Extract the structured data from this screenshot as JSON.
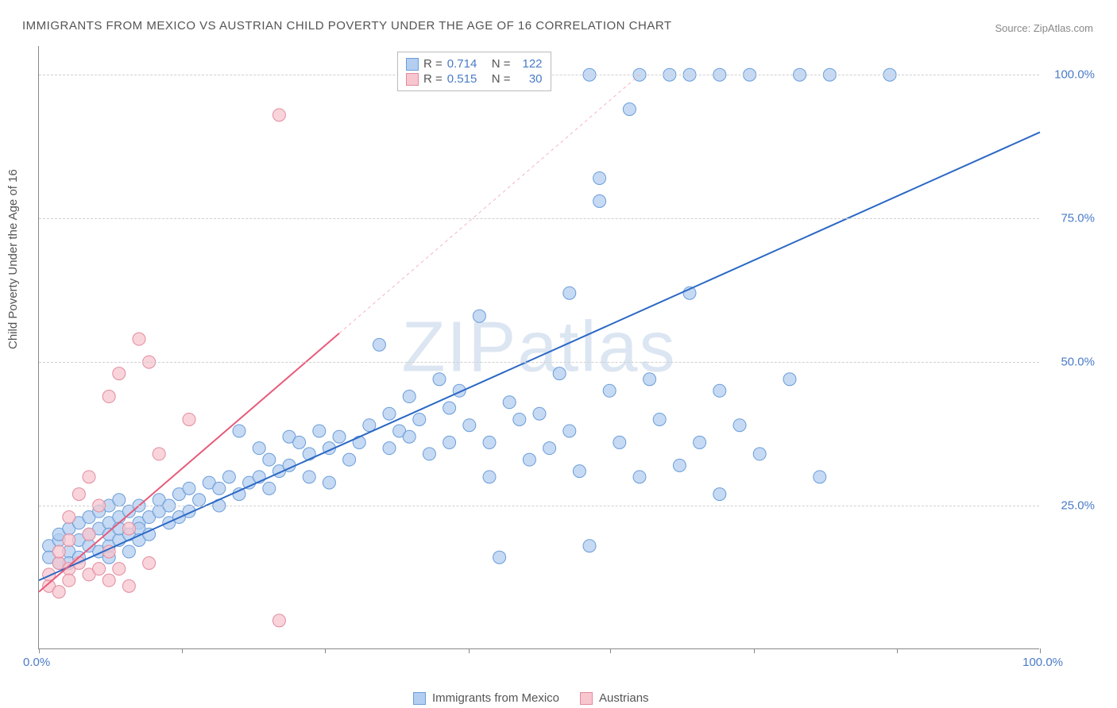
{
  "title": "IMMIGRANTS FROM MEXICO VS AUSTRIAN CHILD POVERTY UNDER THE AGE OF 16 CORRELATION CHART",
  "source": "Source: ZipAtlas.com",
  "ylabel": "Child Poverty Under the Age of 16",
  "watermark_bold": "ZIP",
  "watermark_thin": "atlas",
  "chart": {
    "type": "scatter",
    "xlim": [
      0,
      100
    ],
    "ylim": [
      0,
      105
    ],
    "ytick_labels": [
      "25.0%",
      "50.0%",
      "75.0%",
      "100.0%"
    ],
    "ytick_values": [
      25,
      50,
      75,
      100
    ],
    "xtick_left": "0.0%",
    "xtick_right": "100.0%",
    "xtick_marks": [
      0,
      14.3,
      28.6,
      42.9,
      57.1,
      71.4,
      85.7,
      100
    ],
    "grid_color": "#d0d0d0",
    "background_color": "#ffffff",
    "series": [
      {
        "name": "Immigrants from Mexico",
        "color_fill": "#b3cef0",
        "color_stroke": "#6a9dd8",
        "marker_radius": 8,
        "R": "0.714",
        "N": "122",
        "trend": {
          "x1": 0,
          "y1": 12,
          "x2": 100,
          "y2": 90,
          "color": "#2b68c4",
          "width": 2
        },
        "points": [
          [
            1,
            18
          ],
          [
            1,
            16
          ],
          [
            2,
            19
          ],
          [
            2,
            15
          ],
          [
            2,
            20
          ],
          [
            3,
            17
          ],
          [
            3,
            21
          ],
          [
            3,
            15
          ],
          [
            4,
            19
          ],
          [
            4,
            22
          ],
          [
            4,
            16
          ],
          [
            5,
            20
          ],
          [
            5,
            18
          ],
          [
            5,
            23
          ],
          [
            6,
            21
          ],
          [
            6,
            17
          ],
          [
            6,
            24
          ],
          [
            7,
            16
          ],
          [
            7,
            22
          ],
          [
            7,
            25
          ],
          [
            7,
            18
          ],
          [
            7,
            20
          ],
          [
            8,
            19
          ],
          [
            8,
            23
          ],
          [
            8,
            26
          ],
          [
            8,
            21
          ],
          [
            9,
            20
          ],
          [
            9,
            24
          ],
          [
            9,
            17
          ],
          [
            10,
            22
          ],
          [
            10,
            25
          ],
          [
            10,
            21
          ],
          [
            10,
            19
          ],
          [
            11,
            23
          ],
          [
            11,
            20
          ],
          [
            12,
            24
          ],
          [
            12,
            26
          ],
          [
            13,
            22
          ],
          [
            13,
            25
          ],
          [
            14,
            27
          ],
          [
            14,
            23
          ],
          [
            15,
            28
          ],
          [
            15,
            24
          ],
          [
            16,
            26
          ],
          [
            17,
            29
          ],
          [
            18,
            28
          ],
          [
            18,
            25
          ],
          [
            19,
            30
          ],
          [
            20,
            27
          ],
          [
            20,
            38
          ],
          [
            21,
            29
          ],
          [
            22,
            30
          ],
          [
            22,
            35
          ],
          [
            23,
            28
          ],
          [
            23,
            33
          ],
          [
            24,
            31
          ],
          [
            25,
            32
          ],
          [
            25,
            37
          ],
          [
            26,
            36
          ],
          [
            27,
            34
          ],
          [
            27,
            30
          ],
          [
            28,
            38
          ],
          [
            29,
            29
          ],
          [
            29,
            35
          ],
          [
            30,
            37
          ],
          [
            31,
            33
          ],
          [
            32,
            36
          ],
          [
            33,
            39
          ],
          [
            34,
            53
          ],
          [
            35,
            35
          ],
          [
            35,
            41
          ],
          [
            36,
            38
          ],
          [
            37,
            37
          ],
          [
            37,
            44
          ],
          [
            38,
            40
          ],
          [
            39,
            34
          ],
          [
            40,
            47
          ],
          [
            41,
            36
          ],
          [
            41,
            42
          ],
          [
            42,
            45
          ],
          [
            43,
            39
          ],
          [
            44,
            58
          ],
          [
            45,
            30
          ],
          [
            45,
            36
          ],
          [
            46,
            16
          ],
          [
            47,
            43
          ],
          [
            48,
            40
          ],
          [
            49,
            33
          ],
          [
            50,
            41
          ],
          [
            51,
            35
          ],
          [
            52,
            48
          ],
          [
            53,
            62
          ],
          [
            53,
            38
          ],
          [
            54,
            31
          ],
          [
            55,
            18
          ],
          [
            56,
            78
          ],
          [
            57,
            45
          ],
          [
            58,
            36
          ],
          [
            59,
            94
          ],
          [
            60,
            30
          ],
          [
            61,
            47
          ],
          [
            62,
            40
          ],
          [
            64,
            32
          ],
          [
            65,
            62
          ],
          [
            66,
            36
          ],
          [
            68,
            45
          ],
          [
            68,
            27
          ],
          [
            70,
            39
          ],
          [
            72,
            34
          ],
          [
            75,
            47
          ],
          [
            78,
            30
          ],
          [
            63,
            100
          ],
          [
            65,
            100
          ],
          [
            68,
            100
          ],
          [
            71,
            100
          ],
          [
            76,
            100
          ],
          [
            79,
            100
          ],
          [
            85,
            100
          ],
          [
            56,
            82
          ],
          [
            60,
            100
          ],
          [
            50,
            100
          ],
          [
            55,
            100
          ]
        ]
      },
      {
        "name": "Austrians",
        "color_fill": "#f7c6cf",
        "color_stroke": "#e18c9e",
        "marker_radius": 8,
        "R": "0.515",
        "N": "30",
        "trend": {
          "x1": 0,
          "y1": 10,
          "x2": 30,
          "y2": 55,
          "color": "#e85a7a",
          "width": 2
        },
        "trend_dash": {
          "x1": 30,
          "y1": 55,
          "x2": 60,
          "y2": 100,
          "color": "#f5b5c1",
          "width": 1
        },
        "points": [
          [
            1,
            11
          ],
          [
            1,
            13
          ],
          [
            2,
            15
          ],
          [
            2,
            17
          ],
          [
            2,
            10
          ],
          [
            3,
            14
          ],
          [
            3,
            19
          ],
          [
            3,
            23
          ],
          [
            3,
            12
          ],
          [
            4,
            15
          ],
          [
            4,
            27
          ],
          [
            5,
            13
          ],
          [
            5,
            20
          ],
          [
            5,
            30
          ],
          [
            6,
            14
          ],
          [
            6,
            25
          ],
          [
            7,
            44
          ],
          [
            7,
            12
          ],
          [
            7,
            17
          ],
          [
            8,
            48
          ],
          [
            8,
            14
          ],
          [
            9,
            21
          ],
          [
            9,
            11
          ],
          [
            10,
            54
          ],
          [
            11,
            50
          ],
          [
            11,
            15
          ],
          [
            12,
            34
          ],
          [
            15,
            40
          ],
          [
            24,
            93
          ],
          [
            24,
            5
          ]
        ]
      }
    ]
  },
  "legend_bottom": [
    {
      "label": "Immigrants from Mexico",
      "fill": "#b3cef0",
      "stroke": "#6a9dd8"
    },
    {
      "label": "Austrians",
      "fill": "#f7c6cf",
      "stroke": "#e18c9e"
    }
  ],
  "legend_box": {
    "rows": [
      {
        "swatch_fill": "#b3cef0",
        "swatch_stroke": "#6a9dd8",
        "R_label": "R =",
        "R": "0.714",
        "N_label": "N =",
        "N": "122"
      },
      {
        "swatch_fill": "#f7c6cf",
        "swatch_stroke": "#e18c9e",
        "R_label": "R =",
        "R": "0.515",
        "N_label": "N =",
        "N": "30"
      }
    ]
  }
}
